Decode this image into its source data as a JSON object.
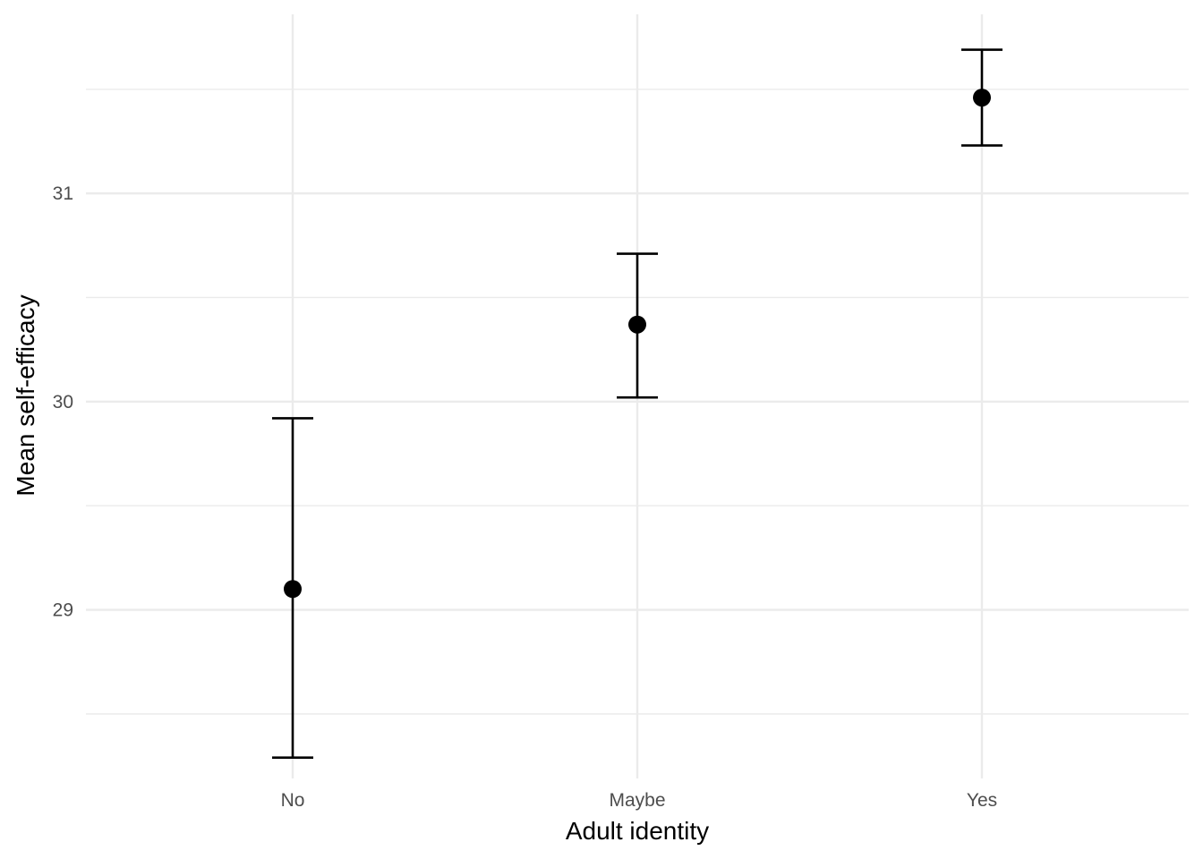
{
  "chart_data": {
    "type": "scatter",
    "title": "",
    "xlabel": "Adult identity",
    "ylabel": "Mean self-efficacy",
    "categories": [
      "No",
      "Maybe",
      "Yes"
    ],
    "series": [
      {
        "means": [
          29.1,
          30.37,
          31.46
        ],
        "lower": [
          28.29,
          30.02,
          31.23
        ],
        "upper": [
          29.92,
          30.71,
          31.69
        ]
      }
    ],
    "ylim": [
      28.19,
      31.86
    ],
    "y_ticks": [
      29,
      30,
      31
    ],
    "y_tick_labels": [
      "29",
      "30",
      "31"
    ],
    "y_minor_ticks": [
      28.5,
      29.5,
      30.5,
      31.5
    ],
    "grid": true,
    "legend": "none",
    "colors": {
      "point": "#000000",
      "errorbar": "#000000",
      "grid": "#ebebeb",
      "tick_text": "#4d4d4d"
    }
  }
}
